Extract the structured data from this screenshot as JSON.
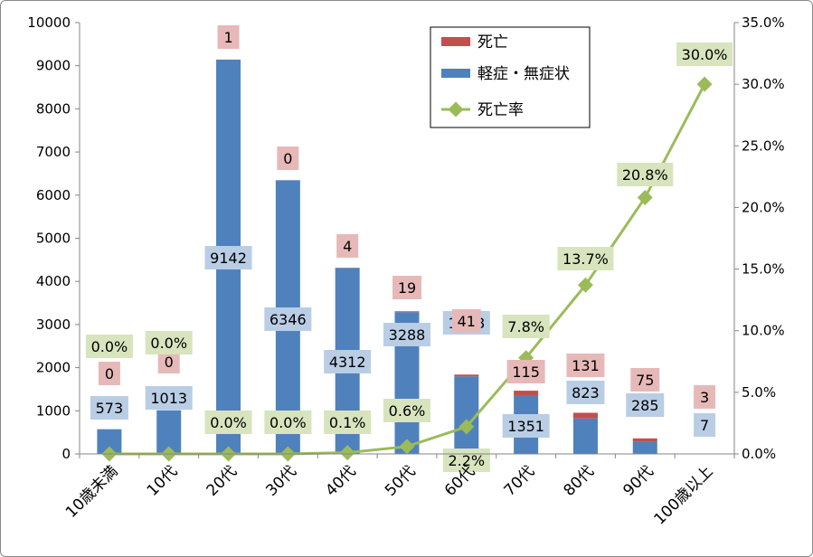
{
  "chart_data": {
    "type": "bar",
    "stacked": true,
    "categories": [
      "10歳未満",
      "10代",
      "20代",
      "30代",
      "40代",
      "50代",
      "60代",
      "70代",
      "80代",
      "90代",
      "100歳以上"
    ],
    "series": [
      {
        "name": "軽症・無症状",
        "type": "bar",
        "axis": "left",
        "color": "#4f81bd",
        "label_bg": "#b9cde5",
        "values": [
          573,
          1013,
          9142,
          6346,
          4312,
          3288,
          1798,
          1351,
          823,
          285,
          7
        ]
      },
      {
        "name": "死亡",
        "type": "bar",
        "axis": "left",
        "color": "#c0504d",
        "label_bg": "#e6b9b8",
        "values": [
          0,
          0,
          1,
          0,
          4,
          19,
          41,
          115,
          131,
          75,
          3
        ]
      },
      {
        "name": "死亡率",
        "type": "line",
        "axis": "right",
        "color": "#9bbb59",
        "label_bg": "#d7e4bd",
        "values": [
          0.0,
          0.0,
          0.0,
          0.0,
          0.1,
          0.6,
          2.2,
          7.8,
          13.7,
          20.8,
          30.0
        ],
        "labels": [
          "0.0%",
          "0.0%",
          "0.0%",
          "0.0%",
          "0.1%",
          "0.6%",
          "2.2%",
          "7.8%",
          "13.7%",
          "20.8%",
          "30.0%"
        ]
      }
    ],
    "y_left": {
      "min": 0,
      "max": 10000,
      "step": 1000,
      "ticks": [
        "0",
        "1000",
        "2000",
        "3000",
        "4000",
        "5000",
        "6000",
        "7000",
        "8000",
        "9000",
        "10000"
      ]
    },
    "y_right": {
      "min": 0,
      "max": 35,
      "step": 5,
      "ticks": [
        "0.0%",
        "5.0%",
        "10.0%",
        "15.0%",
        "20.0%",
        "25.0%",
        "30.0%",
        "35.0%"
      ]
    },
    "legend": {
      "placement": "top-center",
      "items": [
        "死亡",
        "軽症・無症状",
        "死亡率"
      ]
    },
    "grid": false
  }
}
